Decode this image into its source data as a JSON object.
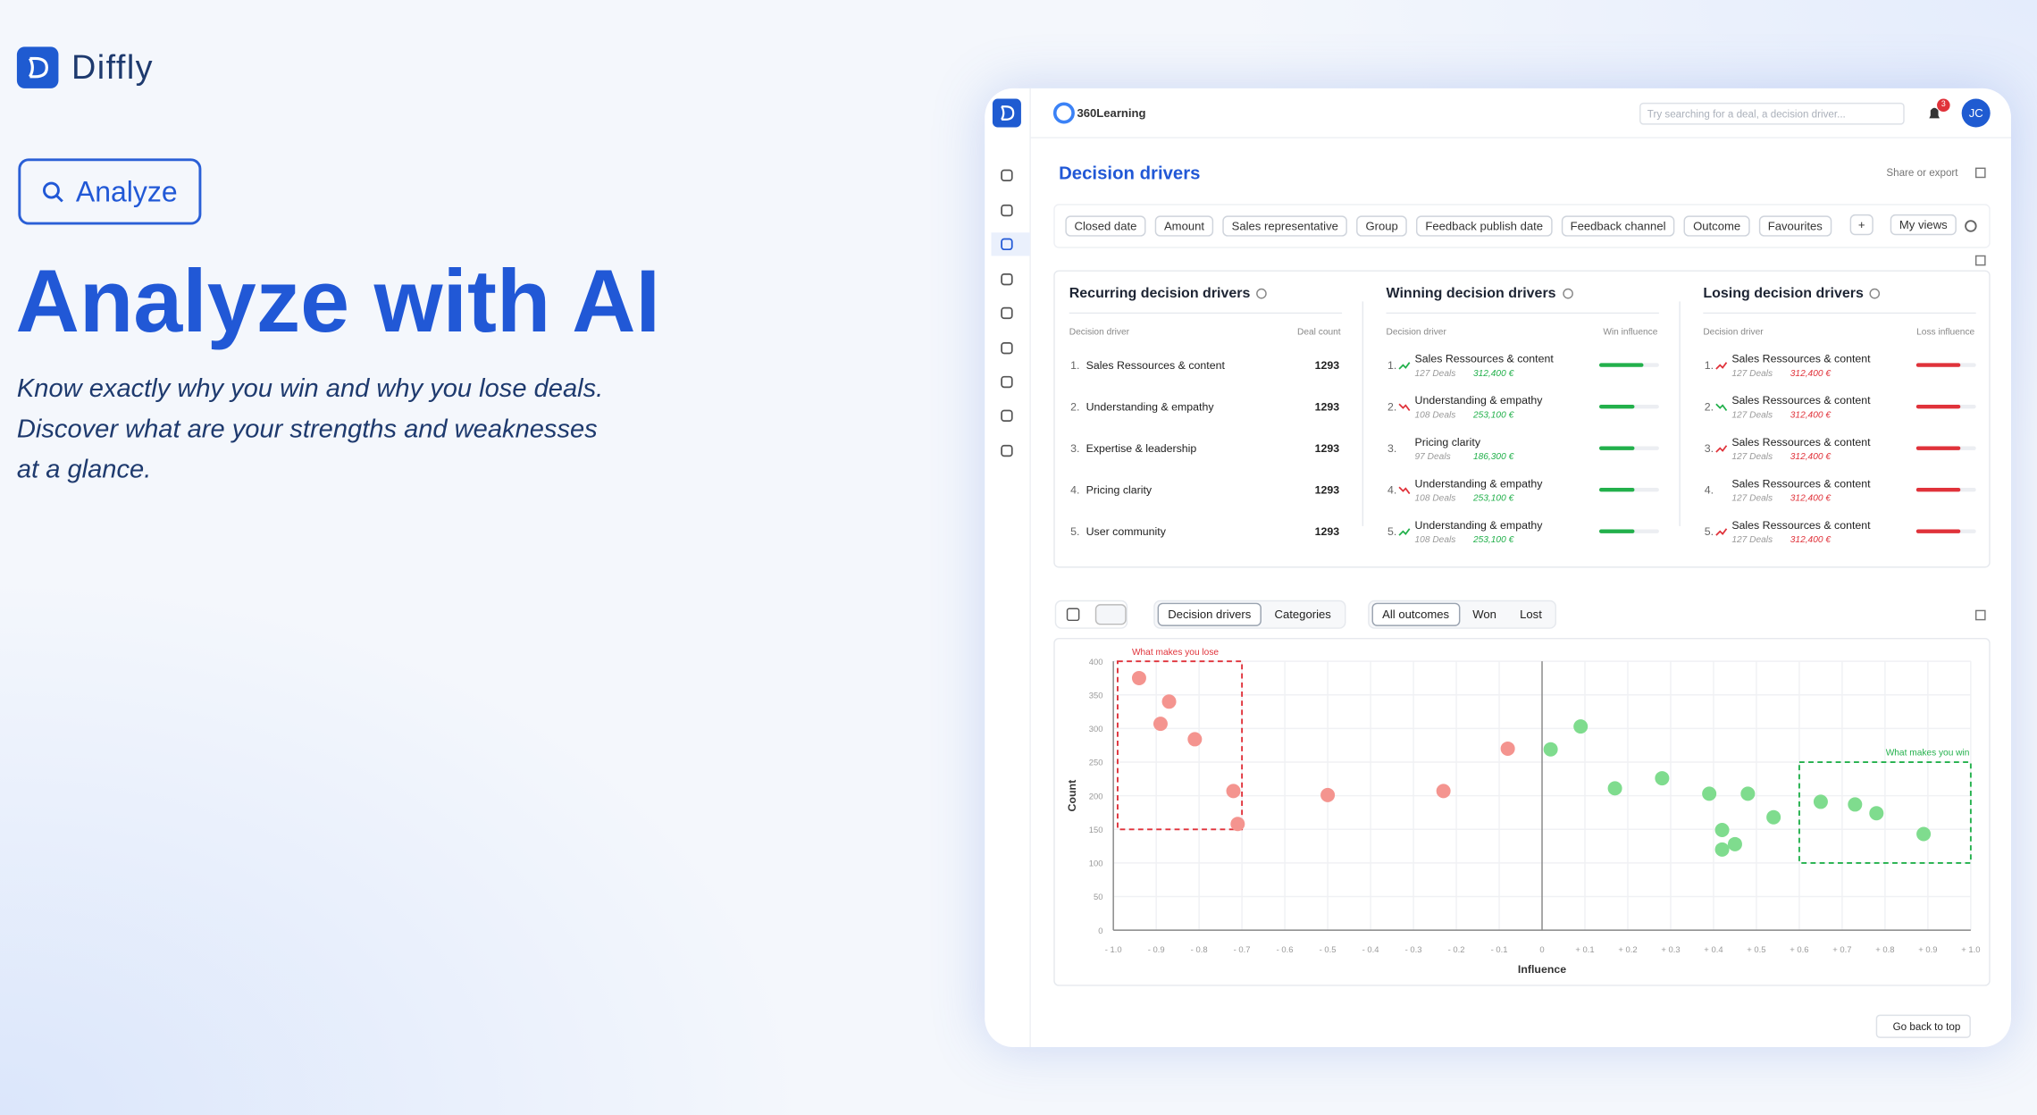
{
  "brand": "Diffly",
  "hero": {
    "button": "Analyze",
    "title": "Analyze with AI",
    "lines": [
      "Know exactly why you win and why you lose deals.",
      "Discover what are your strengths and weaknesses",
      "at a glance."
    ]
  },
  "app": {
    "org": "360Learning",
    "search_placeholder": "Try searching for a deal, a decision driver...",
    "notification_count": 3,
    "avatar": "JC",
    "page_title": "Decision drivers",
    "share": "Share or export",
    "filters": [
      "Closed date",
      "Amount",
      "Sales representative",
      "Group",
      "Feedback publish date",
      "Feedback channel",
      "Outcome",
      "Favourites"
    ],
    "add_filter": "+",
    "views": "My views",
    "recurring": {
      "title": "Recurring decision drivers",
      "columns": [
        "Decision driver",
        "Deal count"
      ],
      "rows": [
        {
          "rank": "1.",
          "name": "Sales Ressources & content",
          "count": 1293
        },
        {
          "rank": "2.",
          "name": "Understanding & empathy",
          "count": 1293
        },
        {
          "rank": "3.",
          "name": "Expertise & leadership",
          "count": 1293
        },
        {
          "rank": "4.",
          "name": "Pricing clarity",
          "count": 1293
        },
        {
          "rank": "5.",
          "name": "User community",
          "count": 1293
        }
      ]
    },
    "winning": {
      "title": "Winning decision drivers",
      "columns": [
        "Decision driver",
        "Win influence"
      ],
      "color": "#22b04b",
      "other_color": "#e0323a",
      "rows": [
        {
          "rank": "1.",
          "trend": "up",
          "name": "Sales Ressources & content",
          "deals": "127 Deals",
          "amount": "312,400 €",
          "influence": 0.74
        },
        {
          "rank": "2.",
          "trend": "down",
          "name": "Understanding & empathy",
          "deals": "108 Deals",
          "amount": "253,100 €",
          "influence": 0.59
        },
        {
          "rank": "3.",
          "trend": null,
          "name": "Pricing clarity",
          "deals": "97 Deals",
          "amount": "186,300 €",
          "influence": 0.59
        },
        {
          "rank": "4.",
          "trend": "down",
          "name": "Understanding & empathy",
          "deals": "108 Deals",
          "amount": "253,100 €",
          "influence": 0.59
        },
        {
          "rank": "5.",
          "trend": "up",
          "name": "Understanding & empathy",
          "deals": "108 Deals",
          "amount": "253,100 €",
          "influence": 0.59
        }
      ]
    },
    "losing": {
      "title": "Losing decision drivers",
      "columns": [
        "Decision driver",
        "Loss influence"
      ],
      "color": "#e0323a",
      "other_color": "#22b04b",
      "rows": [
        {
          "rank": "1.",
          "trend": "up",
          "name": "Sales Ressources & content",
          "deals": "127 Deals",
          "amount": "312,400 €",
          "influence": 0.74
        },
        {
          "rank": "2.",
          "trend": "down",
          "name": "Sales Ressources & content",
          "deals": "127 Deals",
          "amount": "312,400 €",
          "influence": 0.74
        },
        {
          "rank": "3.",
          "trend": "up",
          "name": "Sales Ressources & content",
          "deals": "127 Deals",
          "amount": "312,400 €",
          "influence": 0.74
        },
        {
          "rank": "4.",
          "trend": null,
          "name": "Sales Ressources & content",
          "deals": "127 Deals",
          "amount": "312,400 €",
          "influence": 0.74
        },
        {
          "rank": "5.",
          "trend": "up",
          "name": "Sales Ressources & content",
          "deals": "127 Deals",
          "amount": "312,400 €",
          "influence": 0.74
        }
      ]
    },
    "view_tabs": [
      "Decision drivers",
      "Categories"
    ],
    "outcome_tabs": [
      "All outcomes",
      "Won",
      "Lost"
    ],
    "back_to_top": "Go back to top"
  },
  "chart_data": {
    "type": "scatter",
    "xlabel": "Influence",
    "ylabel": "Count",
    "xlim": [
      -1,
      1
    ],
    "ylim": [
      0,
      400
    ],
    "xticks": [
      {
        "value": -1,
        "label": "- 1.0"
      },
      {
        "value": -0.9,
        "label": "- 0.9"
      },
      {
        "value": -0.8,
        "label": "- 0.8"
      },
      {
        "value": -0.7,
        "label": "- 0.7"
      },
      {
        "value": -0.6,
        "label": "- 0.6"
      },
      {
        "value": -0.5,
        "label": "- 0.5"
      },
      {
        "value": -0.4,
        "label": "- 0.4"
      },
      {
        "value": -0.3,
        "label": "- 0.3"
      },
      {
        "value": -0.2,
        "label": "- 0.2"
      },
      {
        "value": -0.1,
        "label": "- 0.1"
      },
      0,
      {
        "value": 0.1,
        "label": "+ 0.1"
      },
      {
        "value": 0.2,
        "label": "+ 0.2"
      },
      {
        "value": 0.3,
        "label": "+ 0.3"
      },
      {
        "value": 0.4,
        "label": "+ 0.4"
      },
      {
        "value": 0.5,
        "label": "+ 0.5"
      },
      {
        "value": 0.6,
        "label": "+ 0.6"
      },
      {
        "value": 0.7,
        "label": "+ 0.7"
      },
      {
        "value": 0.8,
        "label": "+ 0.8"
      },
      {
        "value": 0.9,
        "label": "+ 0.9"
      },
      {
        "value": 1,
        "label": "+ 1.0"
      }
    ],
    "yticks": [
      0,
      50,
      100,
      150,
      200,
      250,
      300,
      350,
      400
    ],
    "grid": true,
    "series": [
      {
        "color": "#f4948f",
        "x": [
          -0.94,
          -0.87,
          -0.89,
          -0.81,
          -0.72,
          -0.71,
          -0.5,
          -0.23,
          -0.08
        ],
        "values": [
          375,
          340,
          307,
          284,
          207,
          158,
          201,
          207,
          270
        ]
      },
      {
        "color": "#7fdc8e",
        "x": [
          0.02,
          0.09,
          0.17,
          0.28,
          0.39,
          0.48,
          0.42,
          0.45,
          0.42,
          0.54,
          0.65,
          0.73,
          0.78,
          0.89
        ],
        "values": [
          269,
          303,
          211,
          226,
          203,
          203,
          149,
          128,
          120,
          168,
          191,
          187,
          174,
          143
        ]
      }
    ],
    "annotations": [
      {
        "text": "What makes you lose",
        "color": "#e0323a",
        "xlim": [
          -0.99,
          -0.7
        ],
        "ylim": [
          150,
          400
        ]
      },
      {
        "text": "What makes you win",
        "color": "#22b04b",
        "xlim": [
          0.6,
          1
        ],
        "ylim": [
          100,
          250
        ]
      }
    ]
  }
}
